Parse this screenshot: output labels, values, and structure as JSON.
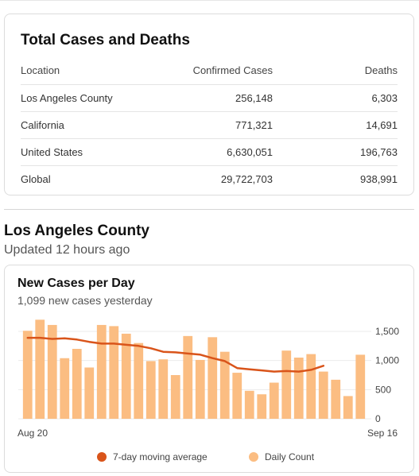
{
  "totals": {
    "title": "Total Cases and Deaths",
    "headers": {
      "location": "Location",
      "confirmed": "Confirmed Cases",
      "deaths": "Deaths"
    },
    "rows": [
      {
        "location": "Los Angeles County",
        "confirmed": "256,148",
        "deaths": "6,303"
      },
      {
        "location": "California",
        "confirmed": "771,321",
        "deaths": "14,691"
      },
      {
        "location": "United States",
        "confirmed": "6,630,051",
        "deaths": "196,763"
      },
      {
        "location": "Global",
        "confirmed": "29,722,703",
        "deaths": "938,991"
      }
    ]
  },
  "county": {
    "title": "Los Angeles County",
    "updated": "Updated 12 hours ago"
  },
  "chart_card": {
    "title": "New Cases per Day",
    "subtitle": "1,099 new cases yesterday",
    "legend": {
      "moving_average": "7-day moving average",
      "daily": "Daily Count"
    }
  },
  "colors": {
    "bar": "#fbbd82",
    "line": "#d9541a",
    "grid": "#ebebeb"
  },
  "chart_data": {
    "type": "bar",
    "x_start_label": "Aug 20",
    "x_end_label": "Sep 16",
    "y_ticks": [
      0,
      500,
      1000,
      1500
    ],
    "y_tick_labels": [
      "0",
      "500",
      "1,000",
      "1,500"
    ],
    "ylim": [
      0,
      1500
    ],
    "grid": true,
    "legend_position": "bottom",
    "series": [
      {
        "name": "Daily Count",
        "type": "bar",
        "values": [
          1510,
          1700,
          1610,
          1040,
          1200,
          880,
          1610,
          1590,
          1460,
          1300,
          990,
          1020,
          750,
          1420,
          1010,
          1400,
          1150,
          790,
          480,
          420,
          620,
          1170,
          1050,
          1110,
          810,
          670,
          390,
          1099
        ]
      },
      {
        "name": "7-day moving average",
        "type": "line",
        "values": [
          1390,
          1390,
          1370,
          1380,
          1360,
          1320,
          1290,
          1290,
          1270,
          1250,
          1210,
          1150,
          1140,
          1120,
          1100,
          1040,
          990,
          870,
          850,
          830,
          810,
          820,
          810,
          840,
          910
        ]
      }
    ]
  }
}
